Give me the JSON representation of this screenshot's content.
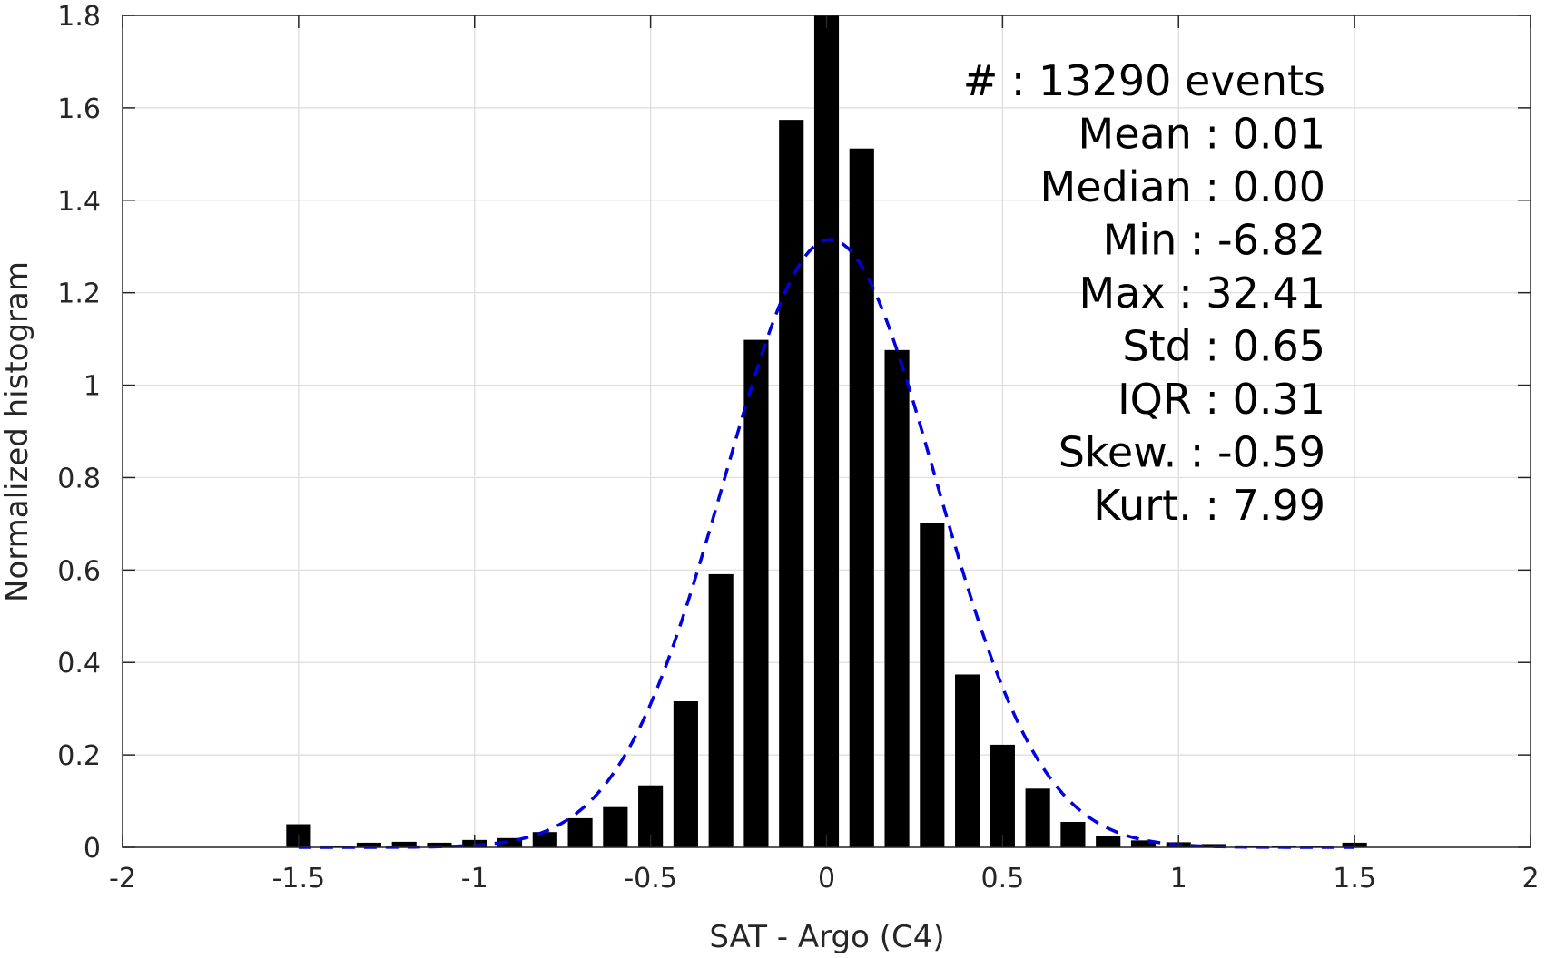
{
  "chart_data": {
    "type": "bar",
    "xlabel": "SAT - Argo (C4)",
    "ylabel": "Normalized histogram",
    "xlim": [
      -2,
      2
    ],
    "ylim": [
      0,
      1.8
    ],
    "xticks": [
      -2,
      -1.5,
      -1,
      -0.5,
      0,
      0.5,
      1,
      1.5,
      2
    ],
    "xtick_labels": [
      "-2",
      "-1.5",
      "-1",
      "-0.5",
      "0",
      "0.5",
      "1",
      "1.5",
      "2"
    ],
    "yticks": [
      0,
      0.2,
      0.4,
      0.6,
      0.8,
      1,
      1.2,
      1.4,
      1.6,
      1.8
    ],
    "ytick_labels": [
      "0",
      "0.2",
      "0.4",
      "0.6",
      "0.8",
      "1",
      "1.2",
      "1.4",
      "1.6",
      "1.8"
    ],
    "grid": true,
    "bar_color": "#000000",
    "bin_width": 0.1,
    "bins": [
      -1.5,
      -1.4,
      -1.3,
      -1.2,
      -1.1,
      -1.0,
      -0.9,
      -0.8,
      -0.7,
      -0.6,
      -0.5,
      -0.4,
      -0.3,
      -0.2,
      -0.1,
      0.0,
      0.1,
      0.2,
      0.3,
      0.4,
      0.5,
      0.6,
      0.7,
      0.8,
      0.9,
      1.0,
      1.1,
      1.2,
      1.3,
      1.4,
      1.5
    ],
    "values": [
      0.05,
      0.004,
      0.01,
      0.012,
      0.01,
      0.016,
      0.02,
      0.033,
      0.063,
      0.087,
      0.134,
      0.316,
      0.591,
      1.098,
      1.574,
      1.8,
      1.512,
      1.076,
      0.702,
      0.374,
      0.222,
      0.127,
      0.055,
      0.025,
      0.015,
      0.011,
      0.007,
      0.004,
      0.004,
      0.002,
      0.01
    ],
    "fit": {
      "type": "gaussian",
      "mean": 0.01,
      "std": 0.3,
      "peak": 1.315,
      "x_range": [
        -1.5,
        1.5
      ],
      "color": "#0000e0",
      "style": "dashed"
    },
    "stats": [
      {
        "label": "#  ",
        "sep": ": ",
        "value": "13290 events"
      },
      {
        "label": "Mean ",
        "sep": ": ",
        "value": "0.01"
      },
      {
        "label": "Median ",
        "sep": ": ",
        "value": "0.00"
      },
      {
        "label": "Min ",
        "sep": ": ",
        "value": "-6.82"
      },
      {
        "label": "Max ",
        "sep": ": ",
        "value": "32.41"
      },
      {
        "label": "Std ",
        "sep": ": ",
        "value": "0.65"
      },
      {
        "label": "IQR ",
        "sep": ": ",
        "value": "0.31"
      },
      {
        "label": "Skew. ",
        "sep": ": ",
        "value": "-0.59"
      },
      {
        "label": "Kurt. ",
        "sep": ": ",
        "value": "7.99"
      }
    ]
  }
}
